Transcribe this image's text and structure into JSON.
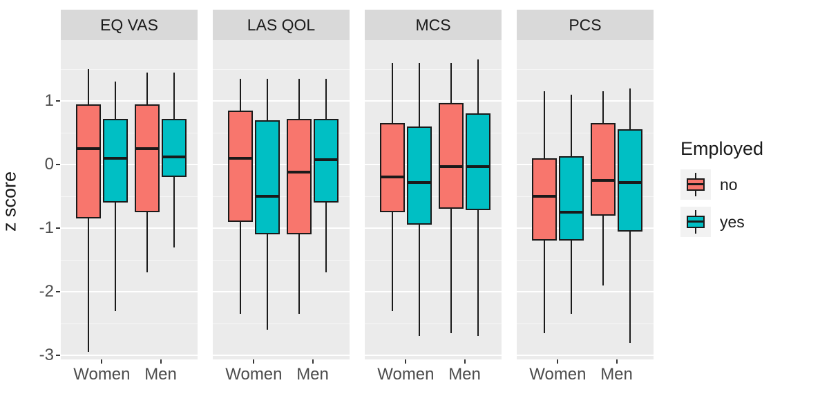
{
  "chart_data": {
    "type": "boxplot",
    "title": "",
    "ylabel": "z score",
    "ylim": [
      -3.1,
      1.95
    ],
    "yticks": [
      1,
      0,
      -1,
      -2,
      -3
    ],
    "yticks_minor": [
      1.5,
      0.5,
      -0.5,
      -1.5,
      -2.5
    ],
    "grid": true,
    "facets": [
      "EQ VAS",
      "LAS QOL",
      "MCS",
      "PCS"
    ],
    "categories": [
      "Women",
      "Men"
    ],
    "legend": {
      "title": "Employed",
      "position": "right",
      "entries": [
        {
          "label": "no",
          "color": "#F8766D"
        },
        {
          "label": "yes",
          "color": "#00BFC4"
        }
      ]
    },
    "panel_background": "#EBEBEB",
    "strip_background": "#D9D9D9",
    "series": [
      {
        "facet": "EQ VAS",
        "category": "Women",
        "group": "no",
        "whisker_low": -2.95,
        "q1": -0.85,
        "median": 0.25,
        "q3": 0.95,
        "whisker_high": 1.5
      },
      {
        "facet": "EQ VAS",
        "category": "Women",
        "group": "yes",
        "whisker_low": -2.3,
        "q1": -0.6,
        "median": 0.1,
        "q3": 0.72,
        "whisker_high": 1.3
      },
      {
        "facet": "EQ VAS",
        "category": "Men",
        "group": "no",
        "whisker_low": -1.7,
        "q1": -0.75,
        "median": 0.25,
        "q3": 0.95,
        "whisker_high": 1.45
      },
      {
        "facet": "EQ VAS",
        "category": "Men",
        "group": "yes",
        "whisker_low": -1.3,
        "q1": -0.2,
        "median": 0.12,
        "q3": 0.72,
        "whisker_high": 1.45
      },
      {
        "facet": "LAS QOL",
        "category": "Women",
        "group": "no",
        "whisker_low": -2.35,
        "q1": -0.9,
        "median": 0.1,
        "q3": 0.85,
        "whisker_high": 1.35
      },
      {
        "facet": "LAS QOL",
        "category": "Women",
        "group": "yes",
        "whisker_low": -2.6,
        "q1": -1.1,
        "median": -0.5,
        "q3": 0.7,
        "whisker_high": 1.35
      },
      {
        "facet": "LAS QOL",
        "category": "Men",
        "group": "no",
        "whisker_low": -2.35,
        "q1": -1.1,
        "median": -0.12,
        "q3": 0.72,
        "whisker_high": 1.35
      },
      {
        "facet": "LAS QOL",
        "category": "Men",
        "group": "yes",
        "whisker_low": -1.7,
        "q1": -0.6,
        "median": 0.08,
        "q3": 0.72,
        "whisker_high": 1.35
      },
      {
        "facet": "MCS",
        "category": "Women",
        "group": "no",
        "whisker_low": -2.3,
        "q1": -0.75,
        "median": -0.2,
        "q3": 0.65,
        "whisker_high": 1.6
      },
      {
        "facet": "MCS",
        "category": "Women",
        "group": "yes",
        "whisker_low": -2.7,
        "q1": -0.95,
        "median": -0.28,
        "q3": 0.6,
        "whisker_high": 1.6
      },
      {
        "facet": "MCS",
        "category": "Men",
        "group": "no",
        "whisker_low": -2.65,
        "q1": -0.7,
        "median": -0.03,
        "q3": 0.97,
        "whisker_high": 1.6
      },
      {
        "facet": "MCS",
        "category": "Men",
        "group": "yes",
        "whisker_low": -2.7,
        "q1": -0.72,
        "median": -0.03,
        "q3": 0.8,
        "whisker_high": 1.65
      },
      {
        "facet": "PCS",
        "category": "Women",
        "group": "no",
        "whisker_low": -2.65,
        "q1": -1.2,
        "median": -0.5,
        "q3": 0.1,
        "whisker_high": 1.15
      },
      {
        "facet": "PCS",
        "category": "Women",
        "group": "yes",
        "whisker_low": -2.35,
        "q1": -1.2,
        "median": -0.75,
        "q3": 0.13,
        "whisker_high": 1.1
      },
      {
        "facet": "PCS",
        "category": "Men",
        "group": "no",
        "whisker_low": -1.9,
        "q1": -0.8,
        "median": -0.25,
        "q3": 0.65,
        "whisker_high": 1.15
      },
      {
        "facet": "PCS",
        "category": "Men",
        "group": "yes",
        "whisker_low": -2.8,
        "q1": -1.05,
        "median": -0.28,
        "q3": 0.55,
        "whisker_high": 1.2
      }
    ]
  }
}
